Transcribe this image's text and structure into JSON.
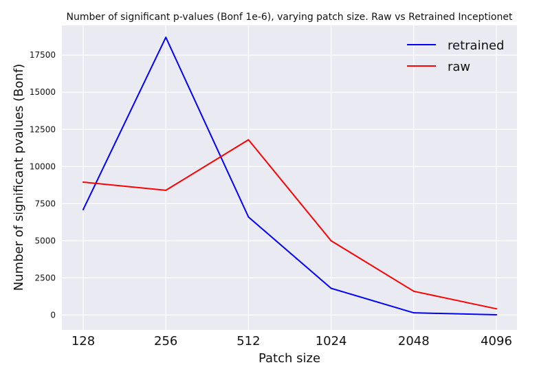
{
  "chart_data": {
    "type": "line",
    "title": "Number of significant p-values (Bonf 1e-6), varying patch size. Raw vs Retrained Inceptionet",
    "xlabel": "Patch size",
    "ylabel": "Number of significant pvalues (Bonf)",
    "categories": [
      "128",
      "256",
      "512",
      "1024",
      "2048",
      "4096"
    ],
    "series": [
      {
        "name": "retrained",
        "color": "#0000ff",
        "values": [
          7100,
          18700,
          6600,
          1800,
          150,
          20
        ]
      },
      {
        "name": "raw",
        "color": "#ff0000",
        "values": [
          8950,
          8400,
          11800,
          5000,
          1600,
          420
        ]
      }
    ],
    "ylim": [
      -1000,
      19500
    ],
    "yticks": [
      "0",
      "2500",
      "5000",
      "7500",
      "10000",
      "12500",
      "15000",
      "17500"
    ],
    "grid": true,
    "legend_position": "top-right",
    "background_color": "#eaeaf2",
    "grid_color": "#ffffff"
  }
}
